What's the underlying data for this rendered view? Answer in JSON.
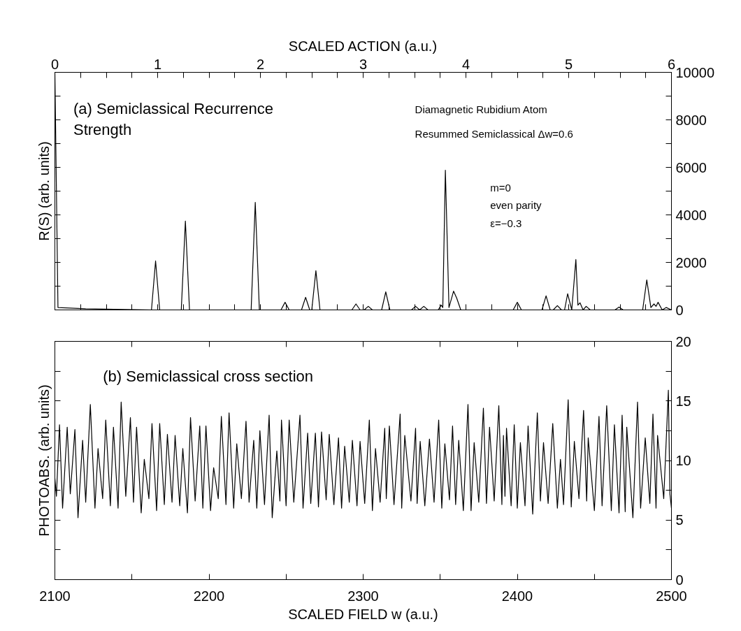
{
  "chart_data": [
    {
      "type": "line",
      "color": "#000000",
      "grid": false,
      "xlabel": "SCALED ACTION (a.u.)",
      "ylabel": "R(S) (arb. units)",
      "xlim": [
        0,
        6
      ],
      "xticks": [
        0,
        {
          "value": 0.25,
          "label": null
        },
        {
          "value": 0.5,
          "label": null
        },
        {
          "value": 0.75,
          "label": null
        },
        1,
        {
          "value": 1.25,
          "label": null
        },
        {
          "value": 1.5,
          "label": null
        },
        {
          "value": 1.75,
          "label": null
        },
        2,
        {
          "value": 2.25,
          "label": null
        },
        {
          "value": 2.5,
          "label": null
        },
        {
          "value": 2.75,
          "label": null
        },
        3,
        {
          "value": 3.25,
          "label": null
        },
        {
          "value": 3.5,
          "label": null
        },
        {
          "value": 3.75,
          "label": null
        },
        4,
        {
          "value": 4.25,
          "label": null
        },
        {
          "value": 4.5,
          "label": null
        },
        {
          "value": 4.75,
          "label": null
        },
        5,
        {
          "value": 5.25,
          "label": null
        },
        {
          "value": 5.5,
          "label": null
        },
        {
          "value": 5.75,
          "label": null
        },
        6
      ],
      "ylim": [
        0,
        10000
      ],
      "yticks": [
        0,
        {
          "value": 1000,
          "label": null
        },
        2000,
        {
          "value": 3000,
          "label": null
        },
        4000,
        {
          "value": 5000,
          "label": null
        },
        6000,
        {
          "value": 7000,
          "label": null
        },
        8000,
        {
          "value": 9000,
          "label": null
        },
        10000
      ],
      "annotations": [
        "(a) Semiclassical Recurrence\nStrength",
        "Diamagnetic Rubidium Atom",
        "Resummed Semiclassical Δw=0.6",
        "m=0",
        "even parity",
        "ε=−0.3"
      ],
      "x": [
        0,
        0.03,
        0.3,
        0.94,
        0.98,
        1.02,
        1.23,
        1.27,
        1.31,
        1.91,
        1.95,
        1.99,
        2.2,
        2.24,
        2.28,
        2.4,
        2.44,
        2.48,
        2.5,
        2.54,
        2.58,
        2.89,
        2.93,
        2.97,
        3.01,
        3.05,
        3.09,
        3.18,
        3.22,
        3.26,
        3.47,
        3.51,
        3.55,
        3.59,
        3.63,
        3.73,
        3.76,
        3.775,
        3.8,
        3.835,
        3.88,
        3.91,
        3.95,
        4.46,
        4.5,
        4.54,
        4.74,
        4.78,
        4.82,
        4.85,
        4.89,
        4.93,
        4.96,
        4.99,
        5.03,
        5.07,
        5.09,
        5.11,
        5.14,
        5.17,
        5.21,
        5.45,
        5.49,
        5.53,
        5.72,
        5.76,
        5.8,
        5.83,
        5.85,
        5.87,
        5.91,
        5.95,
        6.0
      ],
      "values": [
        10000,
        100,
        50,
        0,
        2060,
        0,
        0,
        3740,
        0,
        0,
        4530,
        0,
        0,
        320,
        0,
        0,
        530,
        0,
        0,
        1650,
        0,
        0,
        250,
        0,
        0,
        150,
        0,
        0,
        760,
        0,
        0,
        150,
        0,
        150,
        0,
        0,
        200,
        100,
        5880,
        100,
        790,
        500,
        0,
        0,
        320,
        0,
        0,
        590,
        0,
        0,
        180,
        0,
        0,
        680,
        0,
        2120,
        200,
        300,
        0,
        150,
        0,
        0,
        120,
        0,
        0,
        1260,
        100,
        250,
        150,
        320,
        0,
        100,
        0
      ]
    },
    {
      "type": "line",
      "color": "#000000",
      "grid": false,
      "xlabel": "SCALED FIELD w (a.u.)",
      "ylabel": "PHOTOABS. (arb. units)",
      "xlim": [
        2100,
        2500
      ],
      "xticks": [
        2100,
        {
          "value": 2150,
          "label": null
        },
        2200,
        {
          "value": 2250,
          "label": null
        },
        2300,
        {
          "value": 2350,
          "label": null
        },
        2400,
        {
          "value": 2450,
          "label": null
        },
        2500
      ],
      "ylim": [
        0,
        20
      ],
      "yticks": [
        0,
        {
          "value": 2.5,
          "label": null
        },
        5,
        {
          "value": 7.5,
          "label": null
        },
        10,
        {
          "value": 12.5,
          "label": null
        },
        15,
        {
          "value": 17.5,
          "label": null
        },
        20
      ],
      "annotations": [
        "(b) Semiclassical cross section"
      ],
      "x": [
        2100,
        2101,
        2103,
        2105,
        2108,
        2110,
        2113,
        2115,
        2118,
        2120,
        2123,
        2126,
        2128,
        2131,
        2133,
        2136,
        2138,
        2141,
        2143,
        2146,
        2149,
        2151,
        2153,
        2156,
        2158,
        2161,
        2163,
        2166,
        2168,
        2171,
        2173,
        2176,
        2178,
        2181,
        2183,
        2186,
        2188,
        2191,
        2194,
        2196,
        2198,
        2201,
        2203,
        2206,
        2208,
        2211,
        2213,
        2216,
        2218,
        2221,
        2224,
        2226,
        2229,
        2231,
        2233,
        2236,
        2239,
        2241,
        2244,
        2246,
        2247,
        2250,
        2252,
        2255,
        2259,
        2261,
        2264,
        2266,
        2269,
        2271,
        2273,
        2276,
        2278,
        2281,
        2284,
        2286,
        2288,
        2291,
        2293,
        2296,
        2298,
        2301,
        2304,
        2306,
        2308,
        2311,
        2314,
        2315,
        2317,
        2320,
        2324,
        2325,
        2327,
        2331,
        2334,
        2335,
        2337,
        2340,
        2343,
        2346,
        2349,
        2351,
        2353,
        2356,
        2358,
        2360,
        2362,
        2365,
        2368,
        2370,
        2372,
        2375,
        2378,
        2380,
        2382,
        2385,
        2388,
        2390,
        2391,
        2392,
        2393,
        2396,
        2398,
        2400,
        2402,
        2405,
        2407,
        2410,
        2413,
        2415,
        2417,
        2420,
        2423,
        2426,
        2428,
        2430,
        2433,
        2435,
        2437,
        2440,
        2443,
        2445,
        2446,
        2450,
        2453,
        2455,
        2458,
        2461,
        2463,
        2466,
        2468,
        2470,
        2471,
        2475,
        2478,
        2480,
        2483,
        2486,
        2488,
        2490,
        2491,
        2495,
        2498,
        2499,
        2500
      ],
      "values": [
        8.5,
        7.0,
        13.0,
        6.0,
        12.8,
        7.2,
        12.6,
        5.2,
        11.7,
        6.5,
        14.7,
        6.0,
        11.0,
        6.8,
        13.4,
        6.2,
        12.8,
        6.0,
        14.9,
        7.0,
        13.6,
        6.5,
        12.8,
        5.6,
        10.1,
        6.8,
        13.1,
        5.8,
        13.1,
        6.3,
        12.2,
        6.5,
        12.1,
        6.2,
        11.0,
        5.6,
        13.6,
        6.6,
        12.9,
        6.0,
        12.9,
        5.8,
        9.4,
        6.8,
        13.7,
        6.3,
        14.0,
        6.0,
        11.4,
        6.8,
        13.3,
        6.5,
        11.7,
        6.0,
        12.5,
        6.3,
        13.8,
        5.2,
        10.8,
        6.6,
        13.4,
        6.2,
        13.4,
        6.5,
        13.8,
        6.0,
        12.3,
        6.4,
        12.3,
        6.1,
        12.4,
        6.7,
        12.2,
        6.3,
        11.9,
        6.0,
        11.2,
        6.5,
        11.7,
        6.2,
        11.6,
        6.4,
        13.4,
        5.8,
        11.0,
        6.5,
        12.7,
        6.8,
        12.9,
        6.3,
        13.9,
        6.0,
        12.1,
        6.6,
        12.7,
        6.4,
        11.6,
        6.2,
        11.8,
        6.5,
        13.4,
        6.0,
        11.4,
        6.7,
        12.9,
        6.3,
        11.7,
        5.8,
        14.7,
        5.8,
        11.5,
        6.5,
        14.4,
        6.4,
        12.8,
        6.6,
        14.6,
        6.3,
        12.1,
        7.0,
        12.7,
        6.2,
        13.0,
        6.0,
        11.5,
        6.2,
        12.9,
        5.5,
        14.0,
        6.6,
        11.5,
        6.4,
        13.1,
        6.0,
        10.1,
        6.3,
        15.1,
        6.1,
        11.6,
        6.8,
        14.2,
        6.6,
        11.9,
        5.8,
        13.7,
        6.2,
        14.6,
        5.8,
        13.0,
        5.6,
        13.8,
        5.7,
        12.8,
        5.2,
        14.9,
        6.0,
        11.9,
        6.4,
        13.9,
        6.0,
        12.1,
        6.8,
        15.9,
        7.2,
        6.0
      ]
    }
  ]
}
